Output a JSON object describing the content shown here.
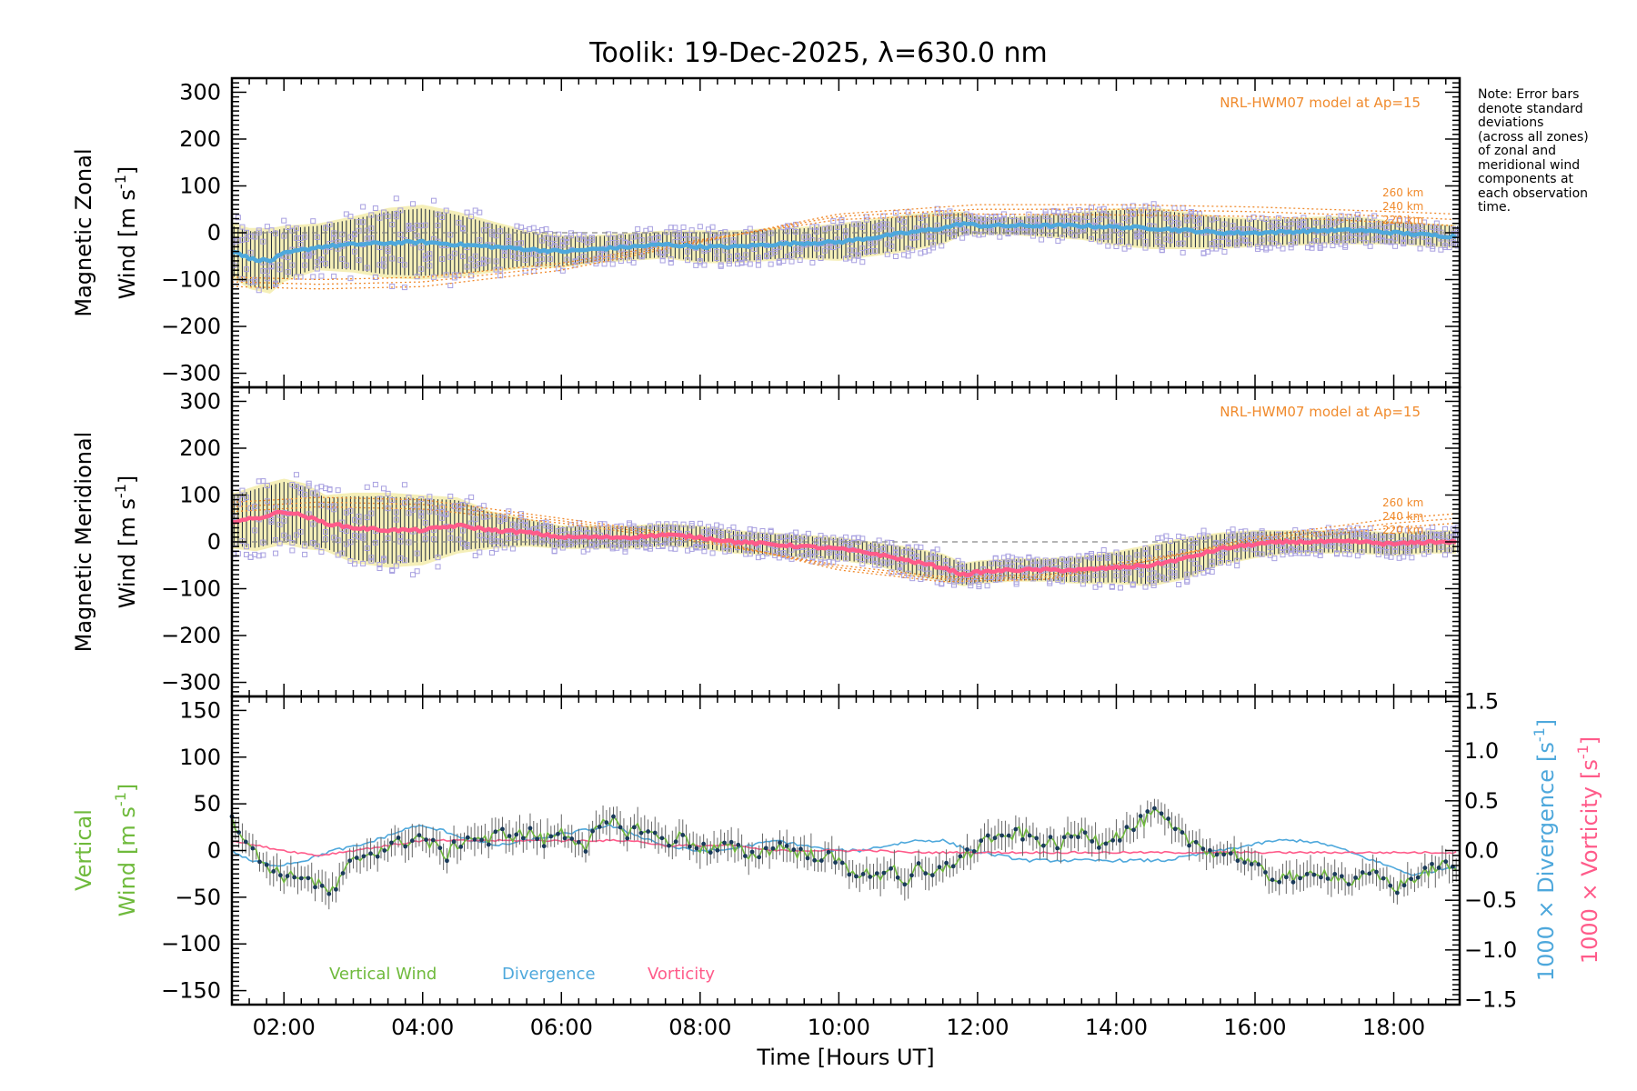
{
  "chart_data": {
    "type": "line",
    "title": "Toolik: 19-Dec-2025, λ=630.0 nm",
    "xlabel": "Time [Hours UT]",
    "xlim": [
      1.25,
      18.95
    ],
    "xticks": [
      2,
      4,
      6,
      8,
      10,
      12,
      14,
      16,
      18
    ],
    "xtick_labels": [
      "02:00",
      "04:00",
      "06:00",
      "08:00",
      "10:00",
      "12:00",
      "14:00",
      "16:00",
      "18:00"
    ],
    "note": [
      "Note: Error bars",
      "denote standard",
      "deviations",
      "(across all zones)",
      "of zonal and",
      "meridional wind",
      "components at",
      "each observation",
      "time."
    ],
    "colors": {
      "zonal": "#4ea8dc",
      "meridional": "#ff5b8a",
      "model": "#f08a2c",
      "scatter": "#a8a0e0",
      "fill": "#f2eaa0",
      "vertical": "#6fba3c",
      "divergence": "#4ea8dc",
      "vorticity": "#ff5b8a",
      "dots": "#1a3a5a"
    },
    "panels": [
      {
        "name": "zonal",
        "ylabel_line1": "Magnetic Zonal",
        "ylabel_line2": "Wind",
        "units": "[m s",
        "units_sup": "-1",
        "units_close": "]",
        "ylim": [
          -330,
          330
        ],
        "yticks": [
          -300,
          -200,
          -100,
          0,
          100,
          200,
          300
        ],
        "ytick_labels": [
          "−300",
          "−200",
          "−100",
          "0",
          "100",
          "200",
          "300"
        ],
        "model_label": "NRL-HWM07 model at Ap=15",
        "model_alt_labels": [
          "260 km",
          "240 km",
          "220 km"
        ],
        "model_times": [
          1.3,
          2.5,
          4.0,
          6.0,
          8.0,
          10.0,
          12.0,
          14.0,
          16.0,
          18.0,
          18.9
        ],
        "model_curves": [
          [
            -115,
            -120,
            -115,
            -80,
            -20,
            40,
            60,
            60,
            55,
            45,
            40
          ],
          [
            -105,
            -110,
            -105,
            -72,
            -18,
            35,
            50,
            50,
            45,
            35,
            28
          ],
          [
            -95,
            -100,
            -95,
            -65,
            -15,
            28,
            40,
            38,
            35,
            22,
            15
          ]
        ],
        "mean_times": [
          1.3,
          1.5,
          1.8,
          2.0,
          2.5,
          3.0,
          3.5,
          4.0,
          4.5,
          5.0,
          5.5,
          6.0,
          6.5,
          7.0,
          7.5,
          8.0,
          8.5,
          9.0,
          9.5,
          10.0,
          10.5,
          11.0,
          11.5,
          11.8,
          12.0,
          12.5,
          13.0,
          13.5,
          14.0,
          14.5,
          15.0,
          15.5,
          16.0,
          16.5,
          17.0,
          17.5,
          18.0,
          18.5,
          18.9
        ],
        "mean_values": [
          -40,
          -55,
          -60,
          -45,
          -30,
          -25,
          -22,
          -20,
          -25,
          -30,
          -35,
          -40,
          -35,
          -30,
          -25,
          -30,
          -30,
          -25,
          -22,
          -20,
          -10,
          0,
          10,
          20,
          15,
          15,
          15,
          15,
          12,
          10,
          5,
          0,
          0,
          2,
          5,
          5,
          0,
          -5,
          -8
        ],
        "spread": [
          60,
          65,
          70,
          60,
          50,
          60,
          75,
          80,
          70,
          55,
          40,
          35,
          30,
          30,
          30,
          35,
          35,
          35,
          35,
          40,
          40,
          40,
          35,
          25,
          20,
          20,
          25,
          30,
          40,
          45,
          40,
          35,
          30,
          30,
          30,
          30,
          25,
          25,
          25
        ]
      },
      {
        "name": "meridional",
        "ylabel_line1": "Magnetic Meridional",
        "ylabel_line2": "Wind",
        "units": "[m s",
        "units_sup": "-1",
        "units_close": "]",
        "ylim": [
          -330,
          330
        ],
        "yticks": [
          -300,
          -200,
          -100,
          0,
          100,
          200,
          300
        ],
        "ytick_labels": [
          "−300",
          "−200",
          "−100",
          "0",
          "100",
          "200",
          "300"
        ],
        "model_label": "NRL-HWM07 model at Ap=15",
        "model_alt_labels": [
          "260 km",
          "240 km",
          "220 km"
        ],
        "model_times": [
          1.3,
          2.5,
          4.0,
          6.0,
          8.0,
          10.0,
          11.5,
          13.0,
          14.5,
          16.0,
          18.0,
          18.9
        ],
        "model_curves": [
          [
            85,
            95,
            90,
            50,
            10,
            -60,
            -85,
            -80,
            -40,
            10,
            50,
            60
          ],
          [
            75,
            85,
            80,
            45,
            5,
            -55,
            -80,
            -75,
            -40,
            5,
            40,
            50
          ],
          [
            65,
            75,
            70,
            40,
            0,
            -50,
            -75,
            -70,
            -35,
            0,
            30,
            40
          ]
        ],
        "mean_times": [
          1.3,
          1.6,
          2.0,
          2.3,
          2.6,
          3.0,
          3.5,
          4.0,
          4.5,
          5.0,
          5.5,
          6.0,
          6.5,
          7.0,
          7.5,
          8.0,
          8.5,
          9.0,
          9.5,
          10.0,
          10.5,
          11.0,
          11.5,
          11.8,
          12.0,
          12.5,
          13.0,
          13.5,
          14.0,
          14.5,
          15.0,
          15.5,
          16.0,
          16.5,
          17.0,
          17.5,
          18.0,
          18.5,
          18.9
        ],
        "mean_values": [
          45,
          50,
          65,
          55,
          40,
          30,
          25,
          25,
          35,
          25,
          20,
          10,
          10,
          10,
          15,
          10,
          0,
          -5,
          -10,
          -15,
          -25,
          -40,
          -55,
          -70,
          -65,
          -60,
          -60,
          -60,
          -55,
          -50,
          -35,
          -15,
          -5,
          0,
          0,
          0,
          -5,
          0,
          0
        ],
        "spread": [
          60,
          70,
          70,
          70,
          60,
          75,
          80,
          75,
          60,
          40,
          30,
          25,
          25,
          25,
          25,
          25,
          25,
          25,
          25,
          25,
          25,
          30,
          30,
          25,
          25,
          25,
          25,
          30,
          35,
          45,
          45,
          35,
          30,
          25,
          25,
          25,
          25,
          25,
          25
        ]
      }
    ],
    "vertical_panel": {
      "ylabel_line1": "Vertical",
      "ylabel_line2": "Wind",
      "units": "[m s",
      "units_sup": "-1",
      "units_close": "]",
      "ylim": [
        -165,
        165
      ],
      "yticks": [
        -150,
        -100,
        -50,
        0,
        50,
        100,
        150
      ],
      "ytick_labels": [
        "−150",
        "−100",
        "−50",
        "0",
        "50",
        "100",
        "150"
      ],
      "right_ylim": [
        -1.55,
        1.55
      ],
      "right_yticks": [
        -1.5,
        -1.0,
        -0.5,
        0.0,
        0.5,
        1.0,
        1.5
      ],
      "right_ytick_labels": [
        "−1.5",
        "−1.0",
        "−0.5",
        "0.0",
        "0.5",
        "1.0",
        "1.5"
      ],
      "right_label_divergence": "1000 × Divergence",
      "right_label_vorticity": "1000 × Vorticity",
      "right_units": "[s",
      "right_units_sup": "-1",
      "right_units_close": "]",
      "legend": [
        "Vertical Wind",
        "Divergence",
        "Vorticity"
      ],
      "vertical_times": [
        1.25,
        1.45,
        1.65,
        1.85,
        2.05,
        2.25,
        2.45,
        2.65,
        2.75,
        2.95,
        3.15,
        3.35,
        3.55,
        3.75,
        3.95,
        4.15,
        4.35,
        4.55,
        4.75,
        4.95,
        5.15,
        5.35,
        5.55,
        5.75,
        5.95,
        6.15,
        6.35,
        6.55,
        6.75,
        6.95,
        7.15,
        7.35,
        7.55,
        7.75,
        7.95,
        8.15,
        8.35,
        8.55,
        8.75,
        8.95,
        9.15,
        9.35,
        9.55,
        9.75,
        9.95,
        10.15,
        10.35,
        10.55,
        10.75,
        10.95,
        11.15,
        11.35,
        11.55,
        11.75,
        11.95,
        12.15,
        12.35,
        12.55,
        12.75,
        12.95,
        13.15,
        13.35,
        13.55,
        13.75,
        13.95,
        14.15,
        14.35,
        14.55,
        14.65,
        14.85,
        15.05,
        15.25,
        15.45,
        15.65,
        15.85,
        16.05,
        16.25,
        16.45,
        16.65,
        16.85,
        17.05,
        17.25,
        17.45,
        17.65,
        17.85,
        18.05,
        18.25,
        18.45,
        18.65,
        18.85
      ],
      "vertical_values": [
        35,
        12,
        -10,
        -20,
        -30,
        -25,
        -35,
        -45,
        -40,
        -15,
        -5,
        0,
        5,
        10,
        15,
        5,
        -5,
        10,
        15,
        10,
        20,
        15,
        20,
        10,
        20,
        15,
        5,
        25,
        30,
        20,
        25,
        15,
        10,
        15,
        5,
        0,
        5,
        0,
        -5,
        0,
        5,
        0,
        -5,
        -5,
        -10,
        -20,
        -25,
        -30,
        -15,
        -35,
        -20,
        -30,
        -15,
        -10,
        0,
        15,
        10,
        20,
        15,
        10,
        5,
        15,
        20,
        10,
        15,
        20,
        30,
        40,
        35,
        20,
        10,
        5,
        -5,
        0,
        -10,
        -20,
        -30,
        -25,
        -35,
        -20,
        -25,
        -30,
        -35,
        -25,
        -30,
        -40,
        -30,
        -25,
        -15,
        -20
      ],
      "divergence_times": [
        1.25,
        1.5,
        1.9,
        2.3,
        2.7,
        3.1,
        3.5,
        3.9,
        4.3,
        4.7,
        5.1,
        5.5,
        5.9,
        6.3,
        6.7,
        7.1,
        7.5,
        7.9,
        8.3,
        8.7,
        9.1,
        9.5,
        9.9,
        10.3,
        10.7,
        11.1,
        11.5,
        11.9,
        12.3,
        12.7,
        13.1,
        13.5,
        13.9,
        14.3,
        14.7,
        15.1,
        15.5,
        15.9,
        16.3,
        16.7,
        17.1,
        17.5,
        17.9,
        18.3,
        18.6,
        18.95
      ],
      "divergence_values": [
        0.0,
        -0.1,
        -0.15,
        -0.1,
        0.0,
        0.05,
        0.15,
        0.25,
        0.2,
        0.1,
        0.05,
        0.1,
        0.15,
        0.2,
        0.25,
        0.15,
        0.05,
        0.0,
        0.0,
        0.05,
        0.1,
        0.05,
        0.0,
        0.0,
        0.05,
        0.1,
        0.1,
        0.0,
        -0.05,
        -0.1,
        -0.1,
        -0.1,
        -0.1,
        -0.1,
        -0.1,
        -0.05,
        0.0,
        0.05,
        0.1,
        0.1,
        0.05,
        -0.05,
        -0.15,
        -0.25,
        -0.2,
        -0.15
      ],
      "vorticity_times": [
        1.25,
        1.6,
        2.0,
        2.5,
        3.0,
        3.5,
        4.0,
        4.5,
        5.0,
        5.5,
        6.0,
        6.5,
        7.0,
        7.5,
        8.0,
        8.5,
        9.0,
        9.5,
        10.0,
        10.5,
        11.0,
        11.5,
        12.0,
        12.5,
        13.0,
        13.5,
        14.0,
        14.5,
        15.0,
        15.5,
        16.0,
        16.5,
        17.0,
        17.5,
        18.0,
        18.5,
        18.95
      ],
      "vorticity_values": [
        0.1,
        0.05,
        0.0,
        -0.05,
        0.0,
        0.05,
        0.1,
        0.1,
        0.1,
        0.1,
        0.1,
        0.1,
        0.1,
        0.05,
        0.05,
        0.05,
        0.0,
        0.0,
        0.0,
        0.0,
        -0.02,
        -0.02,
        -0.02,
        -0.02,
        -0.02,
        -0.02,
        -0.02,
        -0.02,
        -0.02,
        -0.02,
        -0.02,
        -0.02,
        -0.02,
        -0.02,
        -0.02,
        -0.02,
        -0.02
      ]
    }
  }
}
